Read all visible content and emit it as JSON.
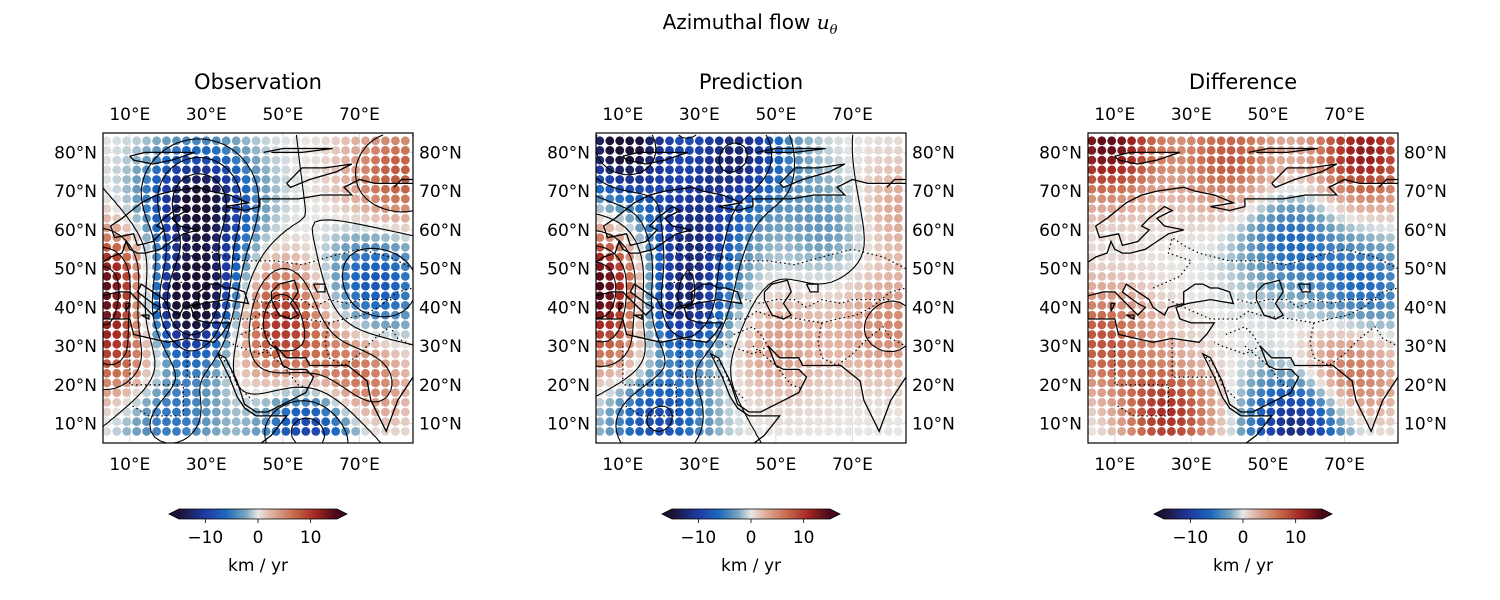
{
  "figure": {
    "title_text": "Azimuthal flow",
    "title_symbol": "u",
    "title_subscript": "θ"
  },
  "chart_data": [
    {
      "type": "scatter",
      "panel": "observation",
      "title": "Observation",
      "projection": "lon-lat map with coastlines and borders",
      "xlim_lon_E": [
        3,
        84
      ],
      "ylim_lat_N": [
        5,
        85
      ],
      "x_ticks": [
        "10°E",
        "30°E",
        "50°E",
        "70°E"
      ],
      "y_ticks": [
        "10°N",
        "20°N",
        "30°N",
        "40°N",
        "50°N",
        "60°N",
        "70°N",
        "80°N"
      ],
      "grid": true,
      "contours": true,
      "field_features_km_per_yr": [
        {
          "lon": 28,
          "lat": 68,
          "value": -15
        },
        {
          "lon": 24,
          "lat": 39,
          "value": -14
        },
        {
          "lon": 30,
          "lat": 47,
          "value": -9
        },
        {
          "lon": 58,
          "lat": 11,
          "value": -13
        },
        {
          "lon": 74,
          "lat": 46,
          "value": -8
        },
        {
          "lon": 20,
          "lat": 13,
          "value": -6
        },
        {
          "lon": 4,
          "lat": 46,
          "value": 14
        },
        {
          "lon": 8,
          "lat": 28,
          "value": 9
        },
        {
          "lon": 47,
          "lat": 40,
          "value": 10
        },
        {
          "lon": 68,
          "lat": 20,
          "value": 9
        },
        {
          "lon": 80,
          "lat": 74,
          "value": 8
        },
        {
          "lon": 52,
          "lat": 24,
          "value": 5
        }
      ],
      "colorbar": {
        "ticks": [
          "−10",
          "0",
          "10"
        ],
        "label": "km / yr",
        "range": [
          -15,
          15
        ],
        "extend": "both"
      }
    },
    {
      "type": "scatter",
      "panel": "prediction",
      "title": "Prediction",
      "projection": "lon-lat map with coastlines and borders",
      "xlim_lon_E": [
        3,
        84
      ],
      "ylim_lat_N": [
        5,
        85
      ],
      "x_ticks": [
        "10°E",
        "30°E",
        "50°E",
        "70°E"
      ],
      "y_ticks": [
        "10°N",
        "20°N",
        "30°N",
        "40°N",
        "50°N",
        "60°N",
        "70°N",
        "80°N"
      ],
      "grid": true,
      "contours": true,
      "field_features_km_per_yr": [
        {
          "lon": 10,
          "lat": 82,
          "value": -16
        },
        {
          "lon": 40,
          "lat": 80,
          "value": -12
        },
        {
          "lon": 24,
          "lat": 40,
          "value": -13
        },
        {
          "lon": 28,
          "lat": 60,
          "value": -10
        },
        {
          "lon": 19,
          "lat": 12,
          "value": -9
        },
        {
          "lon": 65,
          "lat": 62,
          "value": -4
        },
        {
          "lon": 4,
          "lat": 46,
          "value": 15
        },
        {
          "lon": 10,
          "lat": 30,
          "value": 6
        },
        {
          "lon": 50,
          "lat": 30,
          "value": 4
        },
        {
          "lon": 80,
          "lat": 35,
          "value": 5
        },
        {
          "lon": 80,
          "lat": 65,
          "value": 4
        }
      ],
      "colorbar": {
        "ticks": [
          "−10",
          "0",
          "10"
        ],
        "label": "km / yr",
        "range": [
          -15,
          15
        ],
        "extend": "both"
      }
    },
    {
      "type": "scatter",
      "panel": "difference",
      "title": "Difference",
      "projection": "lon-lat map with coastlines and borders",
      "xlim_lon_E": [
        3,
        84
      ],
      "ylim_lat_N": [
        5,
        85
      ],
      "x_ticks": [
        "10°E",
        "30°E",
        "50°E",
        "70°E"
      ],
      "y_ticks": [
        "10°N",
        "20°N",
        "30°N",
        "40°N",
        "50°N",
        "60°N",
        "70°N",
        "80°N"
      ],
      "grid": true,
      "contours": false,
      "field_features_km_per_yr": [
        {
          "lon": 8,
          "lat": 82,
          "value": 14
        },
        {
          "lon": 75,
          "lat": 80,
          "value": 12
        },
        {
          "lon": 40,
          "lat": 78,
          "value": 8
        },
        {
          "lon": 55,
          "lat": 58,
          "value": -6
        },
        {
          "lon": 75,
          "lat": 45,
          "value": -6
        },
        {
          "lon": 22,
          "lat": 12,
          "value": 13
        },
        {
          "lon": 58,
          "lat": 10,
          "value": -13
        },
        {
          "lon": 6,
          "lat": 32,
          "value": 8
        },
        {
          "lon": 15,
          "lat": 10,
          "value": -4
        },
        {
          "lon": 70,
          "lat": 22,
          "value": 8
        }
      ],
      "colorbar": {
        "ticks": [
          "−10",
          "0",
          "10"
        ],
        "label": "km / yr",
        "range": [
          -15,
          15
        ],
        "extend": "both"
      }
    }
  ]
}
